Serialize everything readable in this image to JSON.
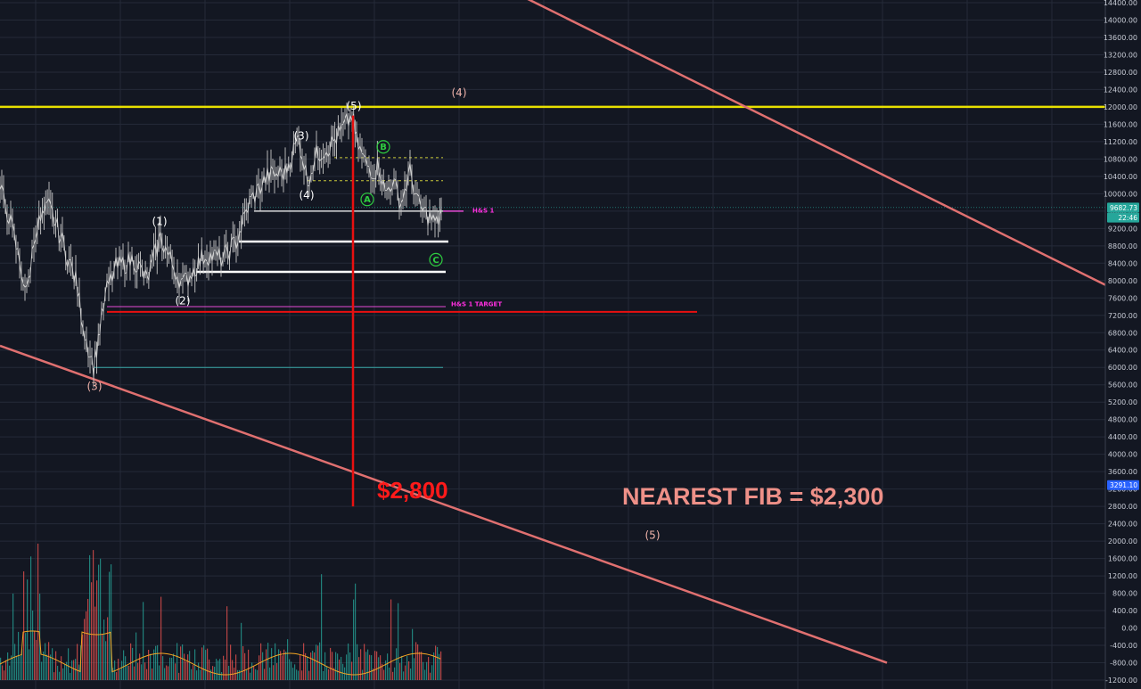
{
  "chart_data": {
    "type": "line",
    "symbol": "",
    "price_axis": {
      "min": -1200,
      "max": 14400,
      "ticks": [
        14400,
        14000,
        13600,
        13200,
        12800,
        12400,
        12000,
        11600,
        11200,
        10800,
        10400,
        10000,
        9600,
        9200,
        8800,
        8400,
        8000,
        7600,
        7200,
        6800,
        6400,
        6000,
        5600,
        5200,
        4800,
        4400,
        4000,
        3600,
        3200,
        2800,
        2400,
        2000,
        1600,
        1200,
        800,
        400,
        0,
        -400,
        -800,
        -1200
      ],
      "tick_labels": [
        "14400.00",
        "14000.00",
        "13600.00",
        "13200.00",
        "12800.00",
        "12400.00",
        "12000.00",
        "11600.00",
        "11200.00",
        "10800.00",
        "10400.00",
        "10000.00",
        "9600.00",
        "9200.00",
        "8800.00",
        "8400.00",
        "8000.00",
        "7600.00",
        "7200.00",
        "6800.00",
        "6400.00",
        "6000.00",
        "5600.00",
        "5200.00",
        "4800.00",
        "4400.00",
        "4000.00",
        "3600.00",
        "3200.00",
        "2800.00",
        "2400.00",
        "2000.00",
        "1600.00",
        "1200.00",
        "800.00",
        "400.00",
        "0.00",
        "-400.00",
        "-800.00",
        "-1200.00"
      ]
    },
    "price_badges": [
      {
        "label": "9682.73",
        "value": 9682.73,
        "color": "#26a69a"
      },
      {
        "label": "22:46",
        "value": 9450,
        "color": "#26a69a"
      },
      {
        "label": "3291.10",
        "value": 3291.1,
        "color": "#2962ff"
      }
    ],
    "price_series": {
      "color": "#c8c8c8",
      "points": [
        [
          0,
          10100
        ],
        [
          10,
          9500
        ],
        [
          20,
          8600
        ],
        [
          30,
          7700
        ],
        [
          40,
          9200
        ],
        [
          55,
          9700
        ],
        [
          70,
          8900
        ],
        [
          85,
          8000
        ],
        [
          95,
          6800
        ],
        [
          105,
          6000
        ],
        [
          112,
          6900
        ],
        [
          120,
          7800
        ],
        [
          130,
          8300
        ],
        [
          150,
          8500
        ],
        [
          165,
          8000
        ],
        [
          180,
          9000
        ],
        [
          195,
          8300
        ],
        [
          205,
          7900
        ],
        [
          215,
          8200
        ],
        [
          230,
          8600
        ],
        [
          250,
          8500
        ],
        [
          265,
          8900
        ],
        [
          280,
          9800
        ],
        [
          300,
          10400
        ],
        [
          320,
          10500
        ],
        [
          335,
          11300
        ],
        [
          345,
          10300
        ],
        [
          355,
          10900
        ],
        [
          370,
          11100
        ],
        [
          385,
          11500
        ],
        [
          395,
          11800
        ],
        [
          400,
          11200
        ],
        [
          410,
          10700
        ],
        [
          420,
          10500
        ],
        [
          425,
          10700
        ],
        [
          432,
          10000
        ],
        [
          440,
          10300
        ],
        [
          450,
          9800
        ],
        [
          460,
          10500
        ],
        [
          470,
          9700
        ],
        [
          480,
          9500
        ],
        [
          490,
          9300
        ],
        [
          495,
          9650
        ]
      ]
    },
    "volume_axis_note": "",
    "channel_lines": [
      {
        "name": "upper-channel",
        "from": [
          0,
          20500
        ],
        "to": [
          1240,
          7900
        ],
        "color": "#e07070"
      },
      {
        "name": "lower-channel",
        "from": [
          0,
          6500
        ],
        "to": [
          995,
          -800
        ],
        "color": "#e07070"
      }
    ],
    "horizontal_levels": [
      {
        "name": "yellow-resistance",
        "price": 12000,
        "x_from": 0,
        "x_to": 1240,
        "color": "#e8e000",
        "width": 2.5
      },
      {
        "name": "white-level-1",
        "price": 9600,
        "x_from": 285,
        "x_to": 497,
        "color": "#ffffff",
        "width": 1.2
      },
      {
        "name": "white-level-2",
        "price": 8900,
        "x_from": 268,
        "x_to": 503,
        "color": "#ffffff",
        "width": 2.5
      },
      {
        "name": "white-level-3",
        "price": 8200,
        "x_from": 220,
        "x_to": 500,
        "color": "#ffffff",
        "width": 2.5
      },
      {
        "name": "hs-target-magenta",
        "price": 7400,
        "x_from": 120,
        "x_to": 500,
        "color": "#e64bd6",
        "width": 1
      },
      {
        "name": "red-level",
        "price": 7280,
        "x_from": 120,
        "x_to": 782,
        "color": "#e81010",
        "width": 2
      },
      {
        "name": "cyan-low",
        "price": 6000,
        "x_from": 105,
        "x_to": 497,
        "color": "#3aa8a8",
        "width": 1
      },
      {
        "name": "yellow-dash-1",
        "price": 10830,
        "x_from": 375,
        "x_to": 497,
        "color": "#c9c93a",
        "width": 1,
        "dash": true
      },
      {
        "name": "yellow-dash-2",
        "price": 10300,
        "x_from": 345,
        "x_to": 497,
        "color": "#c9c93a",
        "width": 1,
        "dash": true
      },
      {
        "name": "hs1-magenta",
        "price": 9600,
        "x_from": 497,
        "x_to": 520,
        "color": "#e64bd6",
        "width": 1.5
      }
    ],
    "vertical_line": {
      "name": "projection-line",
      "x": 396,
      "price_from": 11800,
      "price_to": 2800,
      "color": "#e81010"
    },
    "wave_labels": [
      {
        "text": "(1)",
        "x": 179,
        "price": 9280,
        "style": "white"
      },
      {
        "text": "(2)",
        "x": 205,
        "price": 7450,
        "style": "white"
      },
      {
        "text": "(3)",
        "x": 338,
        "price": 11250,
        "style": "white"
      },
      {
        "text": "(4)",
        "x": 344,
        "price": 9880,
        "style": "white"
      },
      {
        "text": "(5)",
        "x": 397,
        "price": 11940,
        "style": "white"
      },
      {
        "text": "(3)",
        "x": 106,
        "price": 5480,
        "style": "pink"
      },
      {
        "text": "(4)",
        "x": 515,
        "price": 12240,
        "style": "pink"
      },
      {
        "text": "(5)",
        "x": 732,
        "price": 2050,
        "style": "pink"
      }
    ],
    "abc_labels": [
      {
        "text": "A",
        "x": 412,
        "price": 9870
      },
      {
        "text": "B",
        "x": 430,
        "price": 11080
      },
      {
        "text": "C",
        "x": 489,
        "price": 8480
      }
    ],
    "annotations": [
      {
        "text": "H&S 1",
        "x": 530,
        "price": 9570,
        "style": "tag"
      },
      {
        "text": "H&S 1 TARGET",
        "x": 506,
        "price": 7410,
        "style": "tag"
      },
      {
        "text": "$2,800",
        "x": 423,
        "price": 2990,
        "style": "big-red"
      },
      {
        "text": "NEAREST FIB = $2,300",
        "x": 698,
        "price": 2840,
        "style": "big-pink"
      }
    ],
    "volume": {
      "bars_x_from": 0,
      "bars_x_to": 495,
      "baseline_price": -1200,
      "colors": [
        "#ef5350",
        "#26a69a"
      ],
      "ma_color": "#f5a623"
    },
    "grid": true,
    "background": "#131722"
  }
}
